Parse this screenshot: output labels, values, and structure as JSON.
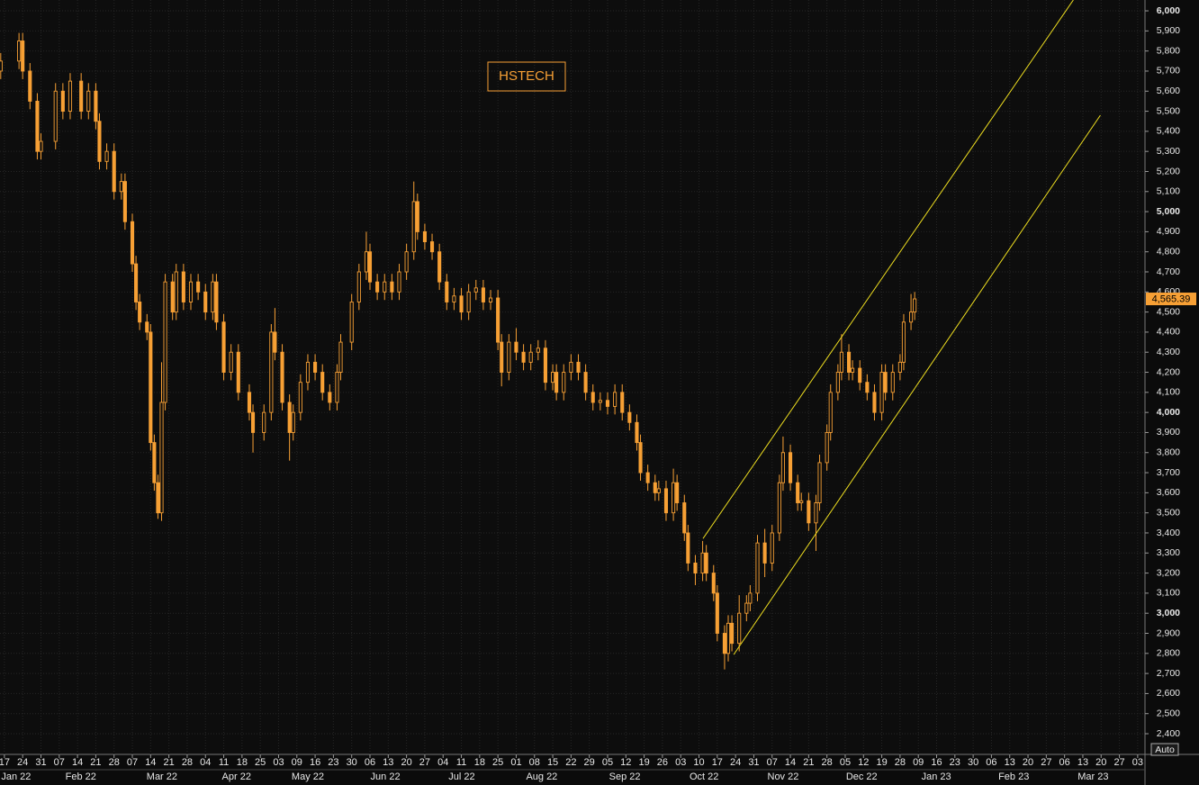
{
  "chart_data": {
    "type": "candlestick",
    "title": "HSTECH",
    "color": "#f7a035",
    "channel_color": "#f0e020",
    "grid": true,
    "ylim": [
      2297,
      6054
    ],
    "yticks": [
      {
        "value": 2400,
        "label": "2,400"
      },
      {
        "value": 2500,
        "label": "2,500"
      },
      {
        "value": 2600,
        "label": "2,600"
      },
      {
        "value": 2700,
        "label": "2,700"
      },
      {
        "value": 2800,
        "label": "2,800"
      },
      {
        "value": 2900,
        "label": "2,900"
      },
      {
        "value": 3000,
        "label": "3,000"
      },
      {
        "value": 3100,
        "label": "3,100"
      },
      {
        "value": 3200,
        "label": "3,200"
      },
      {
        "value": 3300,
        "label": "3,300"
      },
      {
        "value": 3400,
        "label": "3,400"
      },
      {
        "value": 3500,
        "label": "3,500"
      },
      {
        "value": 3600,
        "label": "3,600"
      },
      {
        "value": 3700,
        "label": "3,700"
      },
      {
        "value": 3800,
        "label": "3,800"
      },
      {
        "value": 3900,
        "label": "3,900"
      },
      {
        "value": 4000,
        "label": "4,000"
      },
      {
        "value": 4100,
        "label": "4,100"
      },
      {
        "value": 4200,
        "label": "4,200"
      },
      {
        "value": 4300,
        "label": "4,300"
      },
      {
        "value": 4400,
        "label": "4,400"
      },
      {
        "value": 4500,
        "label": "4,500"
      },
      {
        "value": 4600,
        "label": "4,600"
      },
      {
        "value": 4700,
        "label": "4,700"
      },
      {
        "value": 4800,
        "label": "4,800"
      },
      {
        "value": 4900,
        "label": "4,900"
      },
      {
        "value": 5000,
        "label": "5,000"
      },
      {
        "value": 5100,
        "label": "5,100"
      },
      {
        "value": 5200,
        "label": "5,200"
      },
      {
        "value": 5300,
        "label": "5,300"
      },
      {
        "value": 5400,
        "label": "5,400"
      },
      {
        "value": 5500,
        "label": "5,500"
      },
      {
        "value": 5600,
        "label": "5,600"
      },
      {
        "value": 5700,
        "label": "5,700"
      },
      {
        "value": 5800,
        "label": "5,800"
      },
      {
        "value": 5900,
        "label": "5,900"
      },
      {
        "value": 6000,
        "label": "6,000"
      }
    ],
    "xlim": [
      -1.2,
      312
    ],
    "xticks": [
      {
        "value": 0,
        "label": "17"
      },
      {
        "value": 5,
        "label": "24"
      },
      {
        "value": 10,
        "label": "31"
      },
      {
        "value": 15,
        "label": "07"
      },
      {
        "value": 20,
        "label": "14"
      },
      {
        "value": 25,
        "label": "21"
      },
      {
        "value": 30,
        "label": "28"
      },
      {
        "value": 35,
        "label": "07"
      },
      {
        "value": 40,
        "label": "14"
      },
      {
        "value": 45,
        "label": "21"
      },
      {
        "value": 50,
        "label": "28"
      },
      {
        "value": 55,
        "label": "04"
      },
      {
        "value": 60,
        "label": "11"
      },
      {
        "value": 65,
        "label": "18"
      },
      {
        "value": 70,
        "label": "25"
      },
      {
        "value": 75,
        "label": "03"
      },
      {
        "value": 80,
        "label": "09"
      },
      {
        "value": 85,
        "label": "16"
      },
      {
        "value": 90,
        "label": "23"
      },
      {
        "value": 95,
        "label": "30"
      },
      {
        "value": 100,
        "label": "06"
      },
      {
        "value": 105,
        "label": "13"
      },
      {
        "value": 110,
        "label": "20"
      },
      {
        "value": 115,
        "label": "27"
      },
      {
        "value": 120,
        "label": "04"
      },
      {
        "value": 125,
        "label": "11"
      },
      {
        "value": 130,
        "label": "18"
      },
      {
        "value": 135,
        "label": "25"
      },
      {
        "value": 140,
        "label": "01"
      },
      {
        "value": 145,
        "label": "08"
      },
      {
        "value": 150,
        "label": "15"
      },
      {
        "value": 155,
        "label": "22"
      },
      {
        "value": 160,
        "label": "29"
      },
      {
        "value": 165,
        "label": "05"
      },
      {
        "value": 170,
        "label": "12"
      },
      {
        "value": 175,
        "label": "19"
      },
      {
        "value": 180,
        "label": "26"
      },
      {
        "value": 185,
        "label": "03"
      },
      {
        "value": 190,
        "label": "10"
      },
      {
        "value": 195,
        "label": "17"
      },
      {
        "value": 200,
        "label": "24"
      },
      {
        "value": 205,
        "label": "31"
      },
      {
        "value": 210,
        "label": "07"
      },
      {
        "value": 215,
        "label": "14"
      },
      {
        "value": 220,
        "label": "21"
      },
      {
        "value": 225,
        "label": "28"
      },
      {
        "value": 230,
        "label": "05"
      },
      {
        "value": 235,
        "label": "12"
      },
      {
        "value": 240,
        "label": "19"
      },
      {
        "value": 245,
        "label": "28"
      },
      {
        "value": 250,
        "label": "09"
      },
      {
        "value": 255,
        "label": "16"
      },
      {
        "value": 260,
        "label": "23"
      },
      {
        "value": 265,
        "label": "30"
      },
      {
        "value": 270,
        "label": "06"
      },
      {
        "value": 275,
        "label": "13"
      },
      {
        "value": 280,
        "label": "20"
      },
      {
        "value": 285,
        "label": "27"
      },
      {
        "value": 290,
        "label": "06"
      },
      {
        "value": 295,
        "label": "13"
      },
      {
        "value": 300,
        "label": "20"
      },
      {
        "value": 305,
        "label": "27"
      },
      {
        "value": 310,
        "label": "03"
      }
    ],
    "month_ticks": [
      {
        "value": 3.2,
        "label": "Jan 22"
      },
      {
        "value": 20.9,
        "label": "Feb 22"
      },
      {
        "value": 43.1,
        "label": "Mar 22"
      },
      {
        "value": 63.5,
        "label": "Apr 22"
      },
      {
        "value": 83,
        "label": "May 22"
      },
      {
        "value": 104.2,
        "label": "Jun 22"
      },
      {
        "value": 125.1,
        "label": "Jul 22"
      },
      {
        "value": 147,
        "label": "Aug 22"
      },
      {
        "value": 169.7,
        "label": "Sep 22"
      },
      {
        "value": 191.4,
        "label": "Oct 22"
      },
      {
        "value": 213,
        "label": "Nov 22"
      },
      {
        "value": 234.5,
        "label": "Dec 22"
      },
      {
        "value": 254.9,
        "label": "Jan 23"
      },
      {
        "value": 276.1,
        "label": "Feb 23"
      },
      {
        "value": 297.8,
        "label": "Mar 23"
      }
    ],
    "x": [
      -1,
      4,
      5,
      7,
      9,
      10,
      14,
      16,
      18,
      21,
      23,
      25,
      26,
      28,
      30,
      32,
      33,
      35,
      36,
      37,
      39,
      40,
      41,
      42,
      43,
      44,
      46,
      47,
      49,
      51,
      53,
      55,
      57,
      58,
      60,
      62,
      64,
      67,
      68,
      71,
      73,
      74,
      76,
      78,
      79,
      81,
      83,
      85,
      87,
      89,
      91,
      92,
      95,
      97,
      99,
      100,
      102,
      104,
      106,
      108,
      110,
      112,
      113,
      115,
      117,
      119,
      121,
      123,
      125,
      127,
      129,
      131,
      133,
      135,
      136,
      138,
      140,
      142,
      144,
      146,
      148,
      150,
      151,
      153,
      155,
      157,
      159,
      161,
      163,
      165,
      167,
      169,
      171,
      173,
      174,
      176,
      178,
      179,
      181,
      183,
      184,
      186,
      187,
      189,
      191,
      192,
      194,
      195,
      197,
      198,
      199,
      201,
      203,
      204,
      206,
      208,
      210,
      212,
      213,
      215,
      217,
      218,
      220,
      222,
      223,
      225,
      226,
      228,
      229,
      231,
      232,
      234,
      236,
      238,
      240,
      241,
      243,
      245,
      246,
      248,
      249
    ],
    "open": [
      5700,
      5750,
      5850,
      5700,
      5550,
      5300,
      5350,
      5600,
      5500,
      5650,
      5500,
      5600,
      5450,
      5250,
      5300,
      5100,
      5150,
      4950,
      4740,
      4550,
      4450,
      4400,
      3850,
      3650,
      3500,
      4050,
      4650,
      4500,
      4700,
      4550,
      4650,
      4600,
      4500,
      4650,
      4450,
      4200,
      4300,
      4100,
      4000,
      3900,
      4000,
      4400,
      4300,
      4050,
      3900,
      4000,
      4150,
      4250,
      4200,
      4100,
      4050,
      4200,
      4350,
      4550,
      4700,
      4800,
      4650,
      4600,
      4650,
      4600,
      4700,
      4800,
      5050,
      4900,
      4850,
      4800,
      4650,
      4550,
      4580,
      4500,
      4600,
      4620,
      4550,
      4570,
      4350,
      4200,
      4350,
      4300,
      4250,
      4300,
      4320,
      4150,
      4200,
      4100,
      4200,
      4250,
      4200,
      4100,
      4050,
      4060,
      4030,
      4100,
      4000,
      3950,
      3850,
      3700,
      3650,
      3600,
      3620,
      3500,
      3650,
      3550,
      3400,
      3250,
      3200,
      3300,
      3200,
      3100,
      2900,
      2800,
      2950,
      2850,
      3000,
      3050,
      3100,
      3350,
      3250,
      3400,
      3650,
      3800,
      3650,
      3550,
      3560,
      3450,
      3550,
      3750,
      3900,
      4100,
      4200,
      4300,
      4200,
      4220,
      4150,
      4100,
      4000,
      4200,
      4100,
      4200,
      4250,
      4450,
      4500
    ],
    "high": [
      5790,
      5890,
      5890,
      5740,
      5590,
      5390,
      5640,
      5640,
      5690,
      5690,
      5640,
      5640,
      5490,
      5340,
      5340,
      5190,
      5190,
      4990,
      4780,
      4590,
      4490,
      4440,
      3890,
      3690,
      4250,
      4690,
      4690,
      4740,
      4740,
      4690,
      4690,
      4640,
      4690,
      4690,
      4490,
      4340,
      4340,
      4140,
      4040,
      4040,
      4440,
      4520,
      4340,
      4090,
      4040,
      4190,
      4290,
      4290,
      4240,
      4140,
      4240,
      4390,
      4590,
      4740,
      4900,
      4840,
      4690,
      4690,
      4690,
      4740,
      4840,
      5150,
      5090,
      4940,
      4890,
      4840,
      4690,
      4620,
      4620,
      4640,
      4660,
      4660,
      4610,
      4610,
      4390,
      4390,
      4420,
      4340,
      4340,
      4360,
      4360,
      4240,
      4240,
      4240,
      4290,
      4290,
      4240,
      4140,
      4100,
      4100,
      4140,
      4140,
      4040,
      3990,
      3890,
      3740,
      3690,
      3660,
      3660,
      3720,
      3690,
      3590,
      3440,
      3290,
      3360,
      3340,
      3240,
      3140,
      2940,
      2990,
      2990,
      3090,
      3090,
      3140,
      3390,
      3420,
      3440,
      3690,
      3880,
      3840,
      3690,
      3600,
      3600,
      3590,
      3790,
      3940,
      4140,
      4240,
      4390,
      4340,
      4260,
      4260,
      4190,
      4140,
      4240,
      4240,
      4240,
      4290,
      4490,
      4590,
      4600
    ],
    "low": [
      5660,
      5710,
      5660,
      5510,
      5260,
      5260,
      5310,
      5460,
      5460,
      5460,
      5460,
      5410,
      5210,
      5210,
      5060,
      5060,
      4910,
      4700,
      4510,
      4410,
      4360,
      3810,
      3610,
      3470,
      3460,
      4010,
      4460,
      4460,
      4510,
      4510,
      4560,
      4460,
      4460,
      4410,
      4160,
      4160,
      4060,
      3960,
      3800,
      3860,
      3960,
      4260,
      4010,
      3760,
      3860,
      3960,
      4110,
      4160,
      4060,
      4010,
      4010,
      4160,
      4310,
      4510,
      4660,
      4610,
      4560,
      4560,
      4560,
      4560,
      4660,
      4760,
      4860,
      4810,
      4760,
      4610,
      4510,
      4510,
      4460,
      4460,
      4560,
      4510,
      4510,
      4310,
      4130,
      4160,
      4260,
      4210,
      4210,
      4260,
      4110,
      4110,
      4060,
      4060,
      4160,
      4160,
      4060,
      4010,
      4010,
      3990,
      3990,
      3960,
      3910,
      3810,
      3660,
      3610,
      3560,
      3560,
      3460,
      3460,
      3510,
      3360,
      3210,
      3140,
      3160,
      3160,
      3060,
      2860,
      2720,
      2760,
      2810,
      2810,
      2960,
      3010,
      3060,
      3180,
      3210,
      3360,
      3610,
      3610,
      3510,
      3510,
      3410,
      3310,
      3510,
      3710,
      3860,
      4060,
      4160,
      4160,
      4160,
      4110,
      4060,
      3960,
      3960,
      4060,
      4060,
      4160,
      4210,
      4410,
      4460
    ],
    "close": [
      5750,
      5850,
      5700,
      5550,
      5300,
      5350,
      5600,
      5500,
      5650,
      5500,
      5600,
      5450,
      5250,
      5300,
      5100,
      5150,
      4950,
      4740,
      4550,
      4450,
      4400,
      3850,
      3650,
      3500,
      4050,
      4650,
      4500,
      4700,
      4550,
      4650,
      4600,
      4500,
      4650,
      4450,
      4200,
      4300,
      4100,
      4000,
      3900,
      4000,
      4400,
      4300,
      4050,
      3900,
      4000,
      4150,
      4250,
      4200,
      4100,
      4050,
      4200,
      4350,
      4550,
      4700,
      4800,
      4650,
      4600,
      4650,
      4600,
      4700,
      4800,
      5050,
      4900,
      4850,
      4800,
      4650,
      4550,
      4580,
      4500,
      4600,
      4620,
      4550,
      4570,
      4350,
      4200,
      4350,
      4300,
      4250,
      4300,
      4320,
      4150,
      4200,
      4100,
      4200,
      4250,
      4200,
      4100,
      4050,
      4060,
      4030,
      4100,
      4000,
      3950,
      3850,
      3700,
      3650,
      3600,
      3620,
      3500,
      3650,
      3550,
      3400,
      3250,
      3200,
      3300,
      3200,
      3100,
      2900,
      2800,
      2950,
      2850,
      3000,
      3050,
      3100,
      3350,
      3250,
      3400,
      3650,
      3800,
      3650,
      3550,
      3560,
      3450,
      3550,
      3750,
      3900,
      4100,
      4200,
      4300,
      4200,
      4220,
      4150,
      4100,
      4000,
      4200,
      4100,
      4200,
      4250,
      4450,
      4500,
      4565.39
    ],
    "last_label": "4,565.39",
    "channels": [
      {
        "x": [
          191.1,
          292.4
        ],
        "y": [
          3372,
          6054
        ]
      },
      {
        "x": [
          199.5,
          299.8
        ],
        "y": [
          2794,
          5480
        ]
      }
    ],
    "auto_button": "Auto"
  }
}
